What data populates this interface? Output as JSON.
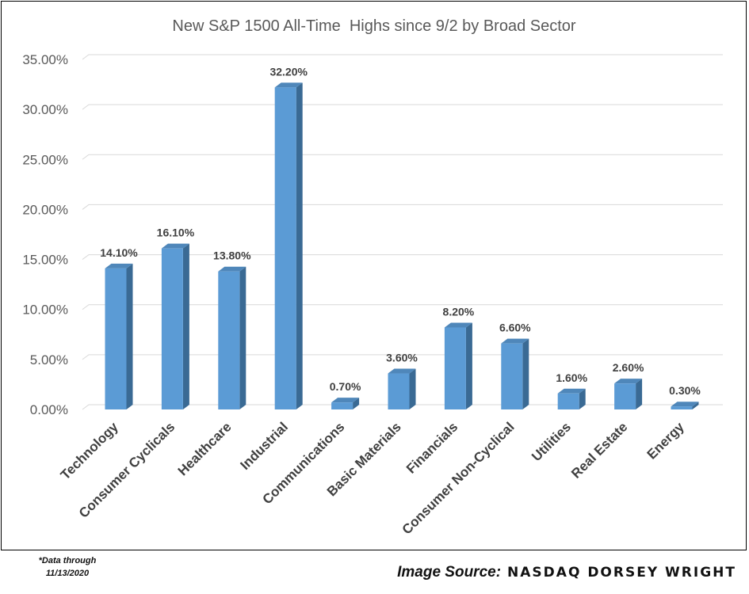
{
  "chart_data": {
    "type": "bar",
    "title": "New S&P 1500 All-Time  Highs since 9/2 by Broad Sector",
    "xlabel": "",
    "ylabel": "",
    "categories": [
      "Technology",
      "Consumer Cyclicals",
      "Healthcare",
      "Industrial",
      "Communications",
      "Basic Materials",
      "Financials",
      "Consumer Non-Cyclical",
      "Utilities",
      "Real Estate",
      "Energy"
    ],
    "values": [
      14.1,
      16.1,
      13.8,
      32.2,
      0.7,
      3.6,
      8.2,
      6.6,
      1.6,
      2.6,
      0.3
    ],
    "data_labels": [
      "14.10%",
      "16.10%",
      "13.80%",
      "32.20%",
      "0.70%",
      "3.60%",
      "8.20%",
      "6.60%",
      "1.60%",
      "2.60%",
      "0.30%"
    ],
    "ylim": [
      0,
      35
    ],
    "yticks": [
      0,
      5,
      10,
      15,
      20,
      25,
      30,
      35
    ],
    "ytick_labels": [
      "0.00%",
      "5.00%",
      "10.00%",
      "15.00%",
      "20.00%",
      "25.00%",
      "30.00%",
      "35.00%"
    ],
    "grid": true,
    "legend": "none",
    "style": "3d-column",
    "colors": {
      "bar_front": "#5B9BD5",
      "bar_side": "#3A6A94",
      "bar_top": "#4F87BA",
      "gridline": "#D9D9D9",
      "tick_label": "#595959",
      "title": "#595959",
      "data_label": "#404040",
      "category_label": "#404040"
    }
  },
  "footnote": {
    "line1": "*Data through",
    "line2": "11/13/2020"
  },
  "source": {
    "prefix": "Image Source:",
    "brand": "NASDAQ DORSEY WRIGHT"
  }
}
